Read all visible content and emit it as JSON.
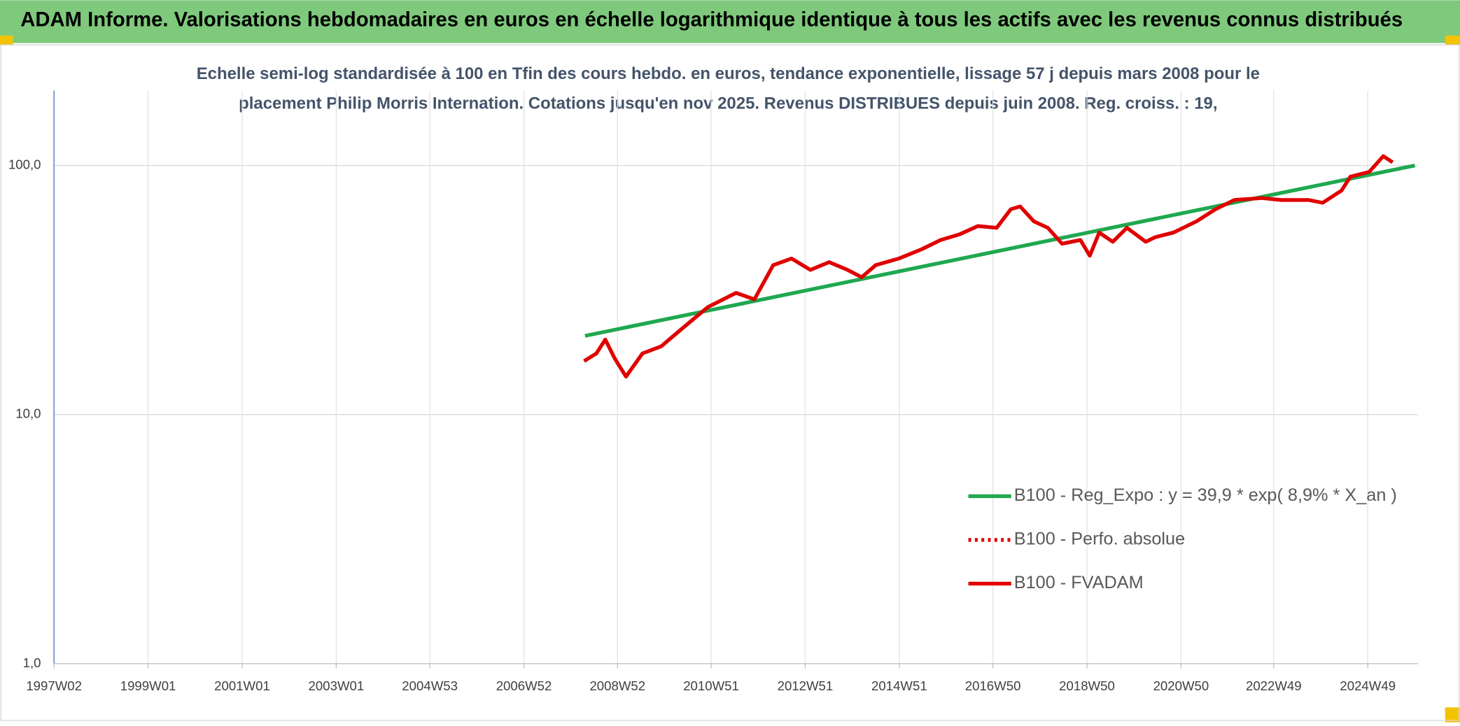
{
  "chart_data": {
    "type": "line",
    "title": "ADAM Informe. Valorisations hebdomadaires en euros en échelle logarithmique identique à tous les actifs avec les revenus connus distribués",
    "subtitle": [
      "Echelle semi-log standardisée à 100 en Tfin des cours hebdo. en euros, tendance exponentielle, lissage 57 j depuis mars 2008 pour le",
      "placement Philip Morris Internation. Cotations jusqu'en nov 2025. Revenus DISTRIBUES depuis juin 2008. Reg. croiss. : 19,"
    ],
    "log_scale": true,
    "grid": true,
    "legend_position": "right",
    "xlim": [
      1997.0,
      2026.0
    ],
    "xticks": [
      {
        "value": 1997.0,
        "label": "1997W02"
      },
      {
        "value": 1999.0,
        "label": "1999W01"
      },
      {
        "value": 2001.0,
        "label": "2001W01"
      },
      {
        "value": 2003.0,
        "label": "2003W01"
      },
      {
        "value": 2004.99,
        "label": "2004W53"
      },
      {
        "value": 2006.99,
        "label": "2006W52"
      },
      {
        "value": 2008.98,
        "label": "2008W52"
      },
      {
        "value": 2010.97,
        "label": "2010W51"
      },
      {
        "value": 2012.97,
        "label": "2012W51"
      },
      {
        "value": 2014.97,
        "label": "2014W51"
      },
      {
        "value": 2016.96,
        "label": "2016W50"
      },
      {
        "value": 2018.96,
        "label": "2018W50"
      },
      {
        "value": 2020.96,
        "label": "2020W50"
      },
      {
        "value": 2022.93,
        "label": "2022W49"
      },
      {
        "value": 2024.93,
        "label": "2024W49"
      }
    ],
    "ylim": [
      1,
      200
    ],
    "yticks": [
      {
        "value": 1,
        "label": "1,0"
      },
      {
        "value": 10,
        "label": "10,0"
      },
      {
        "value": 100,
        "label": "100,0"
      }
    ],
    "series": [
      {
        "name": "B100 - Reg_Expo : y = 39,9 * exp( 8,9% *  X_an )",
        "color": "#1fa84f",
        "dashed": false,
        "x": [
          2008.29,
          2025.93
        ],
        "values": [
          20.7,
          100
        ]
      },
      {
        "name": "B100 - Perfo. absolue",
        "color": "#e00000",
        "dashed": true,
        "x": [],
        "values": []
      },
      {
        "name": "B100 - FVADAM",
        "color": "#e00000",
        "dashed": false,
        "x": [
          2008.27,
          2008.53,
          2008.72,
          2008.92,
          2009.16,
          2009.51,
          2009.91,
          2010.31,
          2010.9,
          2011.5,
          2011.89,
          2012.29,
          2012.68,
          2013.08,
          2013.48,
          2013.87,
          2014.17,
          2014.47,
          2014.96,
          2015.45,
          2015.85,
          2016.25,
          2016.64,
          2017.04,
          2017.34,
          2017.54,
          2017.83,
          2018.13,
          2018.43,
          2018.82,
          2019.02,
          2019.22,
          2019.51,
          2019.81,
          2020.21,
          2020.41,
          2020.8,
          2021.29,
          2021.69,
          2022.09,
          2022.68,
          2023.08,
          2023.67,
          2023.97,
          2024.37,
          2024.56,
          2024.96,
          2025.26,
          2025.46
        ],
        "values": [
          16.4,
          17.6,
          20.0,
          16.8,
          14.2,
          17.6,
          18.8,
          21.8,
          27.0,
          30.8,
          29.0,
          39.8,
          42.3,
          38.1,
          40.9,
          38.1,
          35.6,
          39.8,
          42.3,
          46.1,
          50.2,
          52.9,
          57.1,
          56.2,
          66.7,
          68.5,
          59.7,
          56.2,
          48.5,
          50.2,
          43.4,
          53.8,
          49.4,
          56.2,
          49.4,
          51.5,
          53.8,
          59.7,
          66.7,
          72.7,
          74.0,
          72.7,
          72.7,
          70.8,
          79.3,
          90.2,
          94.2,
          109,
          103
        ]
      }
    ]
  }
}
